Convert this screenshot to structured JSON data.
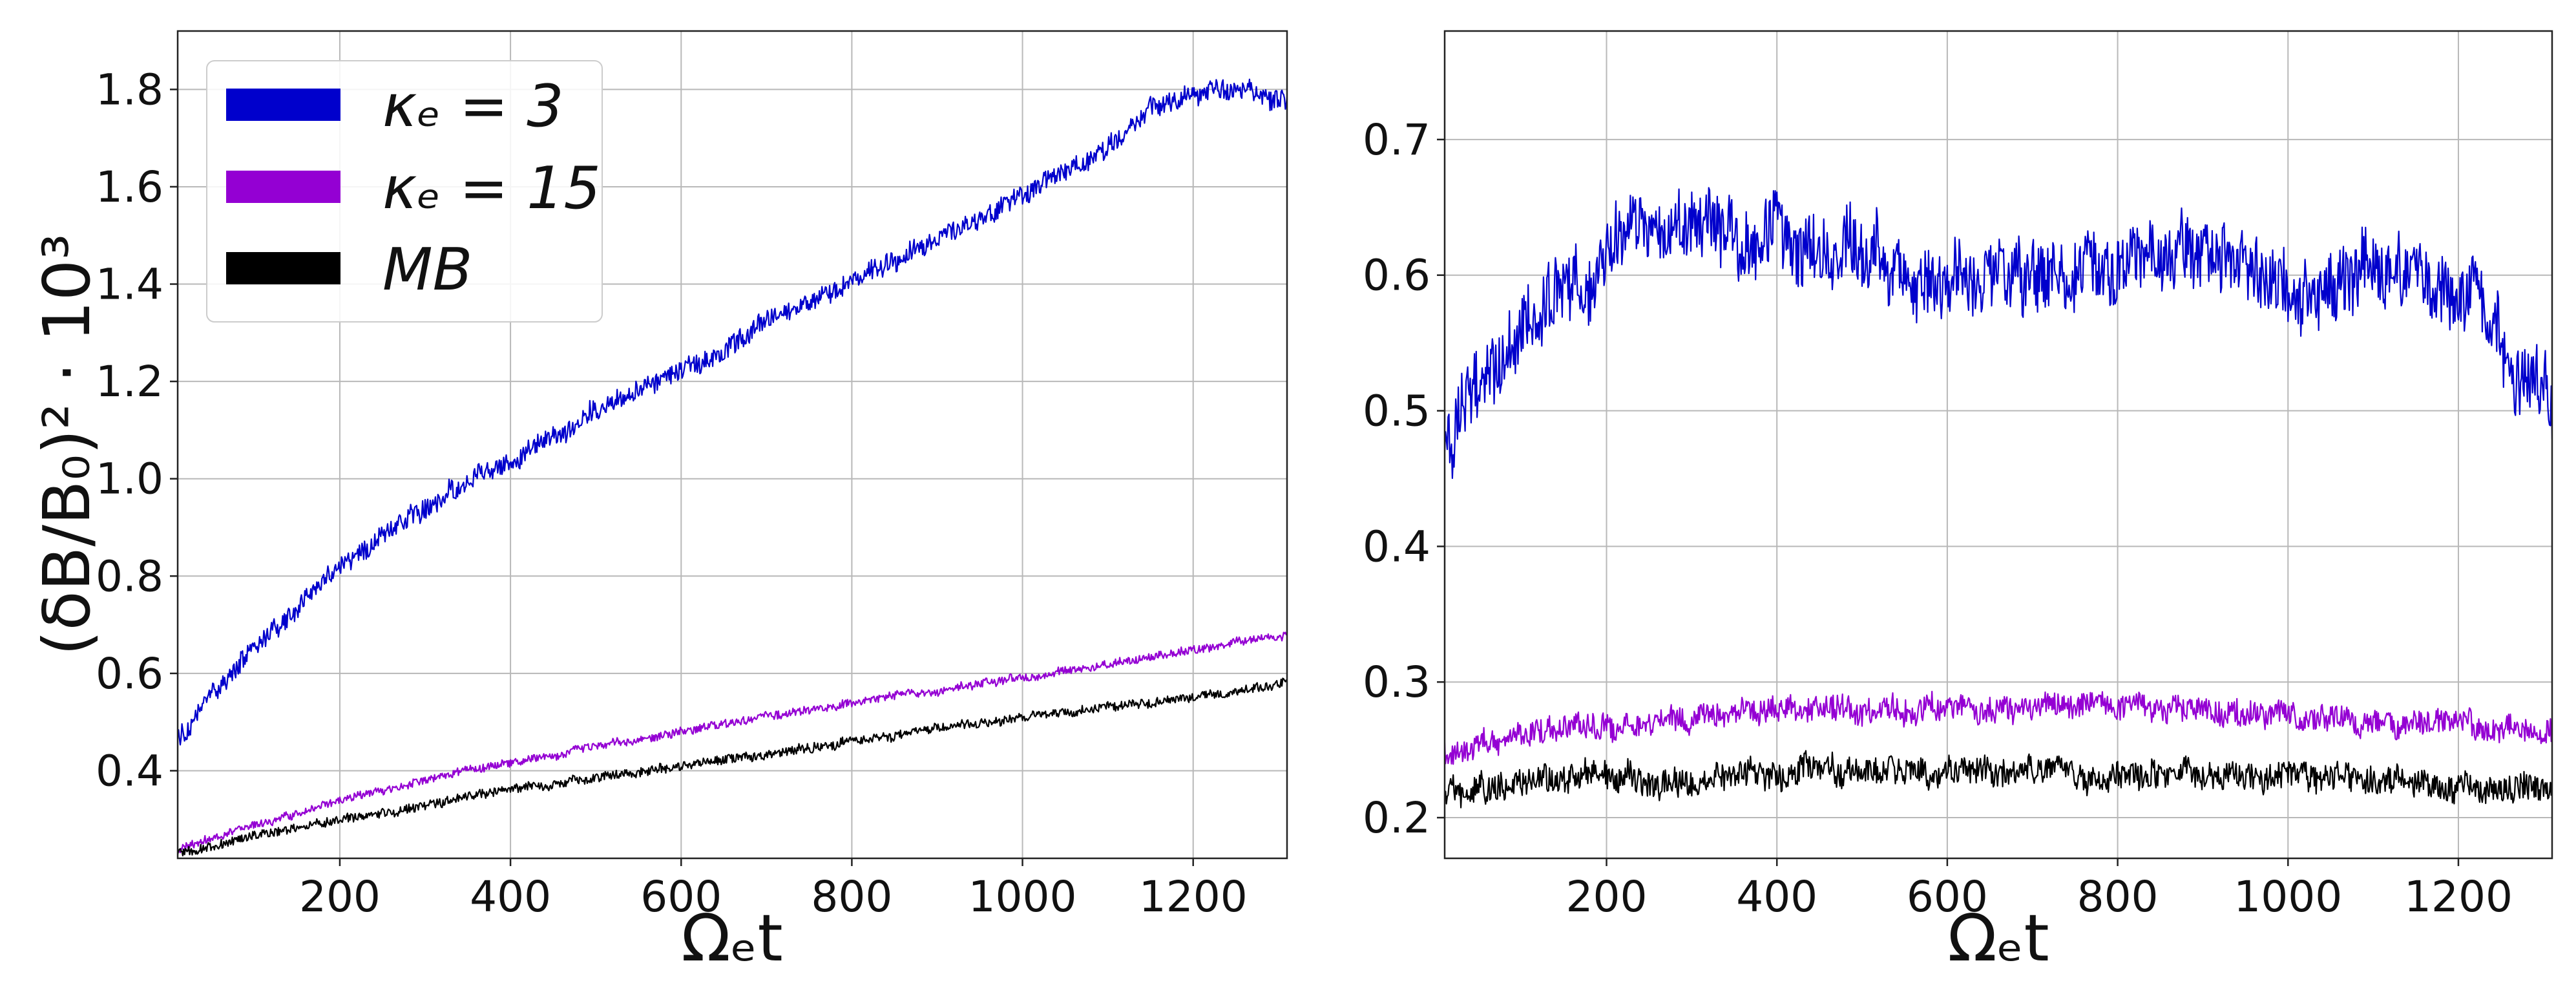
{
  "chart_data": [
    {
      "type": "line",
      "panel": "left",
      "xlabel": "Ωₑt",
      "ylabel": "(δB/B₀)² · 10³",
      "xlim": [
        10,
        1310
      ],
      "ylim": [
        0.22,
        1.92
      ],
      "xticks": [
        200,
        400,
        600,
        800,
        1000,
        1200
      ],
      "yticks": [
        0.4,
        0.6,
        0.8,
        1.0,
        1.2,
        1.4,
        1.6,
        1.8
      ],
      "grid": true,
      "legend": {
        "placement": "top-left",
        "entries": [
          {
            "label": "κₑ = 3",
            "color": "#0000cc"
          },
          {
            "label": "κₑ = 15",
            "color": "#9400d3"
          },
          {
            "label": "MB",
            "color": "#000000"
          }
        ]
      },
      "series": [
        {
          "name": "κₑ = 3",
          "color": "#0000cc",
          "noise": 0.045,
          "x": [
            10,
            100,
            200,
            300,
            400,
            500,
            600,
            700,
            800,
            900,
            1000,
            1100,
            1150,
            1200,
            1250,
            1310
          ],
          "y": [
            0.46,
            0.65,
            0.82,
            0.94,
            1.04,
            1.14,
            1.22,
            1.32,
            1.4,
            1.5,
            1.58,
            1.68,
            1.76,
            1.79,
            1.8,
            1.78
          ]
        },
        {
          "name": "κₑ = 15",
          "color": "#9400d3",
          "noise": 0.018,
          "x": [
            10,
            200,
            400,
            600,
            800,
            1000,
            1200,
            1310
          ],
          "y": [
            0.24,
            0.34,
            0.42,
            0.48,
            0.54,
            0.59,
            0.65,
            0.68
          ]
        },
        {
          "name": "MB",
          "color": "#000000",
          "noise": 0.02,
          "x": [
            10,
            200,
            400,
            600,
            800,
            1000,
            1200,
            1310
          ],
          "y": [
            0.23,
            0.3,
            0.36,
            0.41,
            0.46,
            0.51,
            0.55,
            0.58
          ]
        }
      ]
    },
    {
      "type": "line",
      "panel": "right",
      "xlabel": "Ωₑt",
      "ylabel": "",
      "xlim": [
        10,
        1310
      ],
      "ylim": [
        0.17,
        0.78
      ],
      "xticks": [
        200,
        400,
        600,
        800,
        1000,
        1200
      ],
      "yticks": [
        0.2,
        0.3,
        0.4,
        0.5,
        0.6,
        0.7
      ],
      "grid": true,
      "series": [
        {
          "name": "κₑ = 3",
          "color": "#0000cc",
          "noise": 0.055,
          "x": [
            10,
            50,
            100,
            150,
            200,
            250,
            300,
            350,
            400,
            500,
            600,
            700,
            800,
            900,
            1000,
            1100,
            1200,
            1250,
            1310
          ],
          "y": [
            0.46,
            0.52,
            0.56,
            0.59,
            0.62,
            0.63,
            0.64,
            0.63,
            0.63,
            0.62,
            0.6,
            0.6,
            0.61,
            0.62,
            0.59,
            0.61,
            0.58,
            0.55,
            0.5
          ]
        },
        {
          "name": "κₑ = 15",
          "color": "#9400d3",
          "noise": 0.02,
          "x": [
            10,
            100,
            200,
            300,
            400,
            600,
            800,
            1000,
            1200,
            1310
          ],
          "y": [
            0.245,
            0.26,
            0.27,
            0.275,
            0.28,
            0.28,
            0.28,
            0.275,
            0.27,
            0.265
          ]
        },
        {
          "name": "MB",
          "color": "#000000",
          "noise": 0.022,
          "x": [
            10,
            100,
            200,
            300,
            400,
            600,
            800,
            1000,
            1200,
            1310
          ],
          "y": [
            0.22,
            0.225,
            0.23,
            0.225,
            0.235,
            0.235,
            0.23,
            0.23,
            0.225,
            0.22
          ]
        }
      ]
    }
  ]
}
